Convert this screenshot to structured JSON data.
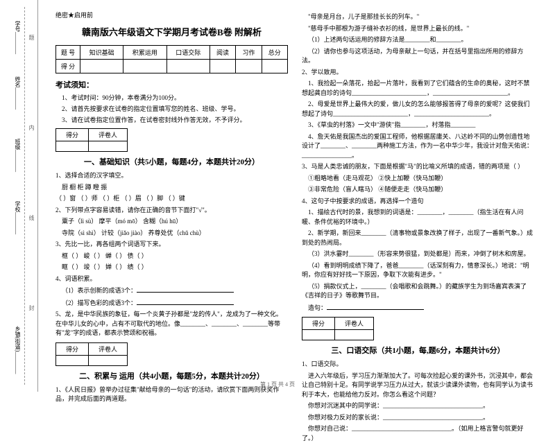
{
  "binding": {
    "labels": [
      "学号________",
      "姓名________",
      "班级________",
      "学校________",
      "乡镇(街道)________"
    ],
    "vtext": [
      "题",
      "本",
      "内",
      "线",
      "封",
      "密"
    ]
  },
  "secret": "绝密★启用前",
  "title": "赣南版六年级语文下学期月考试卷B卷 附解析",
  "scoreTable": {
    "headers": [
      "题 号",
      "知识基础",
      "积累运用",
      "口语交际",
      "阅读",
      "习作",
      "总分"
    ],
    "row2": "得 分"
  },
  "noticeTitle": "考试须知：",
  "notices": [
    "1、考试时间：90分钟，本卷满分为100分。",
    "2、请首先按要求在试卷的指定位置填写您的姓名、班级、学号。",
    "3、请在试卷指定位置作答，在试卷密封线外作答无效，不予评分。"
  ],
  "markerHeaders": [
    "得分",
    "评卷人"
  ],
  "section1": {
    "title": "一、基础知识（共5小题，每题4分，本题共计20分）",
    "q1": "1、选择合适的汉字填空。",
    "q1chars": "厨   橱   柜   蹲   瞪   振",
    "q1line": "（  ）窗   （  ）师   （  ）柜   （  ）眉   （  ）脚   （  ）键",
    "q2": "2、下列带点字容易读错，请你在正确的音节下面打\"√\"。",
    "q2a": "粟子（lì  sù）        摩平（mó mō）        含糊（hú  hū）",
    "q2b": "寺院（sì shì）        计较（jiǎo jiào）      养尊处优（chǔ chù）",
    "q3": "3、先比一比，再各组两个词语写下来。",
    "q3a": "框（    ）    峻（    ）    蝉（    ）    债（    ）",
    "q3b": "眶（    ）    竣（    ）    婵（    ）    绩（    ）",
    "q4": "4、词语积累。",
    "q4a": "（1）表示创新的成语3个：",
    "q4b": "（2）描写色彩的成语3个：",
    "q5": "5、龙，是中华民族的象征，每一个炎黄子孙都是\"龙的传人\"，龙成为了一种文化。在中华儿女的心中，占有不可取代的地位。像________、________、________等带有\"龙\"字的成语，都表示赞颂和祝福。"
  },
  "section2": {
    "title": "二、积累与 运用（共4小题，每题5分，本题共计20分）",
    "q1": "1、《人民日报》曾举办过征集\"献给母亲的一句话\"的活动，请欣赏下面两则获奖作品，并完成后面的两道题。"
  },
  "colRight": {
    "l1": "\"母亲是月台，儿子是那挂长长的列车。\"",
    "l2": "\"慈母手中那根为游子缝补衣衫的线，是世界上最长的线。\"",
    "l3": "（1）上述两句话运用的修辞方法是________和________。",
    "l4": "（2）请你也参与这项活动，为母亲献上一句话，并在括号里指出所用的修辞方法。",
    "q2": "2、学以致用。",
    "q2a": "1、我捡起一朵落花，拾起一片落叶，我看到了它们蕴含的生命的奥秘，这时不禁想起龚自珍的诗句________________________，________________________。",
    "q2b": "2、母爱是世界上最伟大的爱，做儿女的怎么能够报答得了母亲的爱呢？这使我们想起了诗句________________________，________________________。",
    "q2c": "3、《草虫的村落》一文中\"游侠\"指________，村落指________",
    "q2d": "4、詹天佑是我国杰出的爱国工程师，他根据居庸关、八达岭不同的山势创造性地设计了________、________两种施工方法，作为一名中华少年，我设计对詹天佑说：________________。",
    "q3": "3、马是人类忠诚的朋友，下面是根据\"马\"的比喻义所填的成语，错的两项是（   ）",
    "q3a": "①粗略地看（走马观花）    ②快上加鞭（快马加鞭）",
    "q3b": "③非常危险（盲人瞎马）    ④随便走走（快马加鞭）",
    "q4": "4、这句子中按要求的成语，再选择一个造句",
    "q4a": "1、描绘古代时的景，我想到的词语是：________，________（指生活在有人问暖、条件优裕的环境中。）",
    "q4b": "2、新学期，新回来________（清事物或景象改换了样子，出现了一番新气象。）成到处的热闹局。",
    "q4c": "（3）洪水霎时________（形容来势很猛，到处都是）而来，冲倒了树木和房屋。",
    "q4d": "（4）看到明明成绩下降了，爸爸________（话深刻有力，情意深长。）地说：\"明明，你应有好好找一下原因，争取下次能有进步。\"",
    "q4e": "（5）捐款仪式上，________（会唱歌和会跳舞。）的藏族学生为到场嘉宾表演了《吉祥的日子》等歌舞节目。",
    "q4f": "造句："
  },
  "section3": {
    "title": "三、口语交际（共1小题，每,题6分，本题共计6分）",
    "q1": "1、口语交际。",
    "q1text": "进入六年级后，学习压力渐渐加大了。可每次捡起心爱的课外书，沉浸其中，都会让自己特别十足。有同学说学习压力从过大，就该少读课外读物，也有同学认为读书利于本大，也能给他力反对。你怎么看这个问题？",
    "q1a": "你想对沉迷其中的同学说：________________________________。",
    "q1b": "你想对极力反对的家长说：________________________________。",
    "q1c": "你想对自己说：________________________________。（如用上格言警句就更好了。）"
  },
  "footer": "第 1 页 共 4 页"
}
